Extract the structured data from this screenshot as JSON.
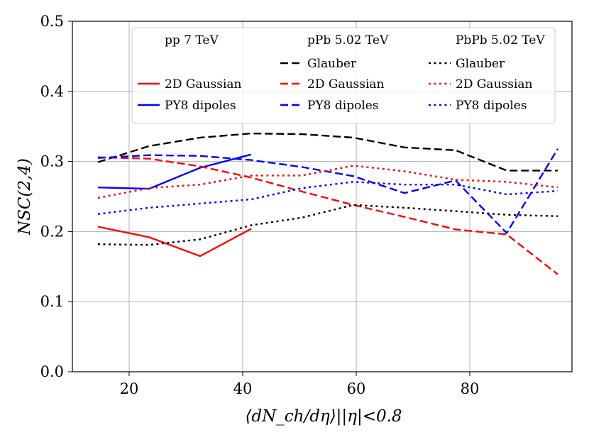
{
  "chart_data": {
    "type": "line",
    "title": "",
    "xlabel": "⟨dN_ch/dη⟩||η|<0.8",
    "ylabel": "NSC(2,4)",
    "xlim": [
      10,
      98
    ],
    "ylim": [
      0.0,
      0.5
    ],
    "x_ticks": [
      20,
      40,
      60,
      80
    ],
    "x_tick_labels": [
      "20",
      "40",
      "60",
      "80"
    ],
    "y_ticks": [
      0.0,
      0.1,
      0.2,
      0.3,
      0.4,
      0.5
    ],
    "y_tick_labels": [
      "0.0",
      "0.1",
      "0.2",
      "0.3",
      "0.4",
      "0.5"
    ],
    "grid": true,
    "legend": {
      "placement": "top-right",
      "column_headers": [
        "pp 7 TeV",
        "pPb 5.02 TeV",
        "PbPb 5.02 TeV"
      ]
    },
    "series": [
      {
        "name": "2D Gaussian",
        "system": "pp 7 TeV",
        "color": "#ff0000",
        "style": "solid",
        "x": [
          14.5,
          23.5,
          32.5,
          41.5
        ],
        "y": [
          0.207,
          0.192,
          0.165,
          0.204
        ]
      },
      {
        "name": "PY8 dipoles",
        "system": "pp 7 TeV",
        "color": "#0000ff",
        "style": "solid",
        "x": [
          14.5,
          23.5,
          32.5,
          41.5
        ],
        "y": [
          0.263,
          0.261,
          0.291,
          0.31
        ]
      },
      {
        "name": "Glauber",
        "system": "pPb 5.02 TeV",
        "color": "#000000",
        "style": "dashed",
        "x": [
          14.5,
          23.5,
          32.5,
          41.5,
          50.5,
          59.5,
          68.5,
          77.5,
          86.5,
          95.5
        ],
        "y": [
          0.299,
          0.322,
          0.334,
          0.34,
          0.339,
          0.334,
          0.32,
          0.316,
          0.287,
          0.287
        ]
      },
      {
        "name": "2D Gaussian",
        "system": "pPb 5.02 TeV",
        "color": "#ff0000",
        "style": "dashed",
        "x": [
          14.5,
          23.5,
          32.5,
          41.5,
          50.5,
          59.5,
          68.5,
          77.5,
          86.5,
          95.5
        ],
        "y": [
          0.306,
          0.304,
          0.293,
          0.277,
          0.257,
          0.238,
          0.221,
          0.203,
          0.196,
          0.139
        ]
      },
      {
        "name": "PY8 dipoles",
        "system": "pPb 5.02 TeV",
        "color": "#0000ff",
        "style": "dashed",
        "x": [
          14.5,
          23.5,
          32.5,
          41.5,
          50.5,
          59.5,
          68.5,
          77.5,
          86.5,
          95.5
        ],
        "y": [
          0.305,
          0.309,
          0.308,
          0.302,
          0.292,
          0.279,
          0.255,
          0.273,
          0.198,
          0.318
        ]
      },
      {
        "name": "Glauber",
        "system": "PbPb 5.02 TeV",
        "color": "#000000",
        "style": "dotted",
        "x": [
          14.5,
          23.5,
          32.5,
          41.5,
          50.5,
          59.5,
          68.5,
          77.5,
          86.5,
          95.5
        ],
        "y": [
          0.182,
          0.181,
          0.189,
          0.209,
          0.22,
          0.238,
          0.234,
          0.229,
          0.224,
          0.222
        ]
      },
      {
        "name": "2D Gaussian",
        "system": "PbPb 5.02 TeV",
        "color": "#ff0000",
        "style": "dotted",
        "x": [
          14.5,
          23.5,
          32.5,
          41.5,
          50.5,
          59.5,
          68.5,
          77.5,
          86.5,
          95.5
        ],
        "y": [
          0.248,
          0.262,
          0.267,
          0.28,
          0.28,
          0.294,
          0.286,
          0.274,
          0.271,
          0.263
        ]
      },
      {
        "name": "PY8 dipoles",
        "system": "PbPb 5.02 TeV",
        "color": "#0000ff",
        "style": "dotted",
        "x": [
          14.5,
          23.5,
          32.5,
          41.5,
          50.5,
          59.5,
          68.5,
          77.5,
          86.5,
          95.5
        ],
        "y": [
          0.225,
          0.234,
          0.24,
          0.246,
          0.262,
          0.271,
          0.267,
          0.267,
          0.253,
          0.258
        ]
      }
    ]
  }
}
